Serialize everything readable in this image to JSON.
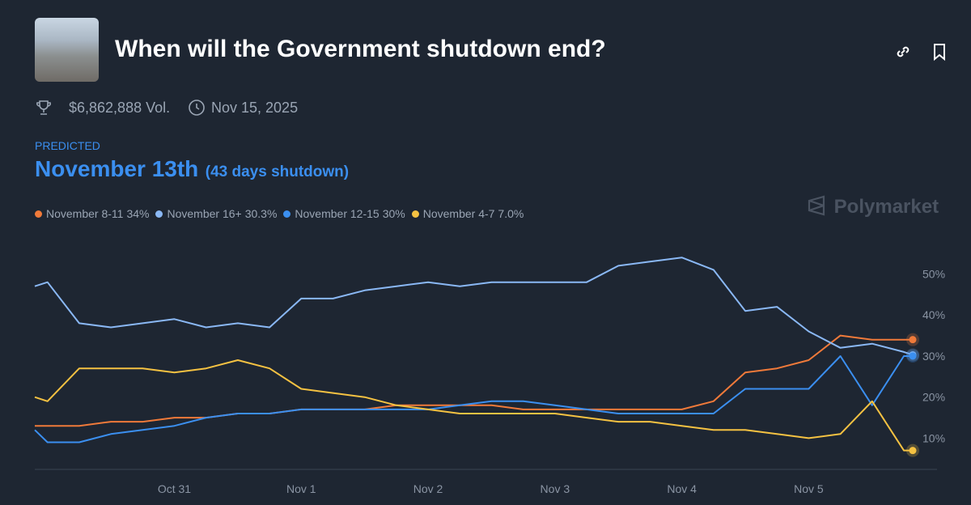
{
  "header": {
    "title": "When will the Government shutdown end?",
    "volume": "$6,862,888 Vol.",
    "end_date": "Nov 15, 2025",
    "predicted_label": "PREDICTED",
    "predicted": "November 13th",
    "predicted_note": "(43 days shutdown)",
    "brand": "Polymarket"
  },
  "chart_data": {
    "type": "line",
    "x": [
      -0.1,
      0,
      0.25,
      0.5,
      0.75,
      1,
      1.25,
      1.5,
      1.75,
      2,
      2.25,
      2.5,
      2.75,
      3,
      3.25,
      3.5,
      3.75,
      4,
      4.25,
      4.5,
      4.75,
      5,
      5.25,
      5.5,
      5.75,
      6,
      6.25,
      6.5,
      6.75,
      6.82
    ],
    "xlim": [
      -0.1,
      6.82
    ],
    "xticks": [
      {
        "value": 1,
        "label": "Oct 31"
      },
      {
        "value": 2,
        "label": "Nov 1"
      },
      {
        "value": 3,
        "label": "Nov 2"
      },
      {
        "value": 4,
        "label": "Nov 3"
      },
      {
        "value": 5,
        "label": "Nov 4"
      },
      {
        "value": 6,
        "label": "Nov 5"
      }
    ],
    "ylim": [
      2,
      57
    ],
    "yticks": [
      {
        "value": 10,
        "label": "10%"
      },
      {
        "value": 20,
        "label": "20%"
      },
      {
        "value": 30,
        "label": "30%"
      },
      {
        "value": 40,
        "label": "40%"
      },
      {
        "value": 50,
        "label": "50%"
      }
    ],
    "grid": false,
    "series": [
      {
        "name": "November 8-11",
        "current": "34%",
        "color": "#f07a3a",
        "values": [
          13,
          13,
          13,
          14,
          14,
          15,
          15,
          16,
          16,
          17,
          17,
          17,
          18,
          18,
          18,
          18,
          17,
          17,
          17,
          17,
          17,
          17,
          19,
          26,
          27,
          29,
          35,
          34,
          34,
          34
        ]
      },
      {
        "name": "November 16+",
        "current": "30.3%",
        "color": "#8ab8f5",
        "values": [
          47,
          48,
          38,
          37,
          38,
          39,
          37,
          38,
          37,
          44,
          44,
          46,
          47,
          48,
          47,
          48,
          48,
          48,
          48,
          52,
          53,
          54,
          51,
          41,
          42,
          36,
          32,
          33,
          31,
          30.3
        ]
      },
      {
        "name": "November 12-15",
        "current": "30%",
        "color": "#3b8ff0",
        "values": [
          12,
          9,
          9,
          11,
          12,
          13,
          15,
          16,
          16,
          17,
          17,
          17,
          17,
          17,
          18,
          19,
          19,
          18,
          17,
          16,
          16,
          16,
          16,
          22,
          22,
          22,
          30,
          18,
          30,
          30
        ]
      },
      {
        "name": "November 4-7",
        "current": "7.0%",
        "color": "#f5c242",
        "values": [
          20,
          19,
          27,
          27,
          27,
          26,
          27,
          29,
          27,
          22,
          21,
          20,
          18,
          17,
          16,
          16,
          16,
          16,
          15,
          14,
          14,
          13,
          12,
          12,
          11,
          10,
          11,
          19,
          7,
          7
        ]
      }
    ]
  }
}
